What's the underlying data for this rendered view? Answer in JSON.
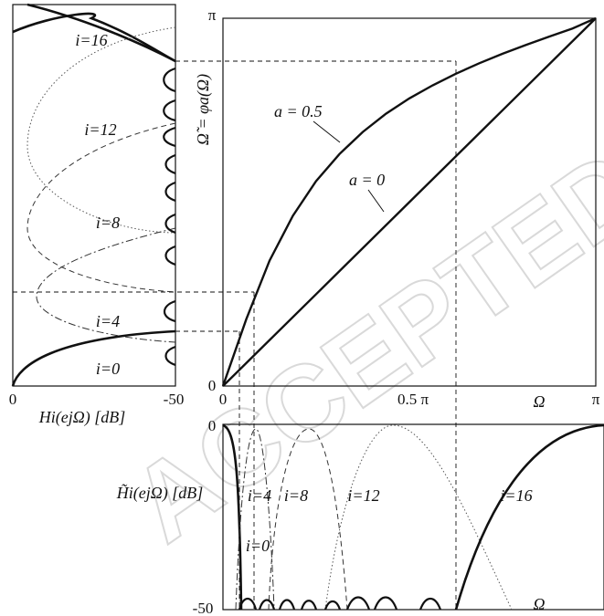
{
  "watermark": "ACCEPTED MANUSCRIPT",
  "chart_data": [
    {
      "type": "line",
      "panel": "frequency-warping",
      "xlabel": "Ω",
      "ylabel": "Ω̃ = φa(Ω)",
      "xlim": [
        0,
        3.1416
      ],
      "ylim": [
        0,
        3.1416
      ],
      "x_tick_labels": [
        "0",
        "0.5 π",
        "π"
      ],
      "y_tick_labels": [
        "0",
        "π"
      ],
      "series": [
        {
          "name": "a = 0",
          "x": [
            0,
            0.7854,
            1.5708,
            2.3562,
            3.1416
          ],
          "y": [
            0,
            0.7854,
            1.5708,
            2.3562,
            3.1416
          ]
        },
        {
          "name": "a = 0.5",
          "x": [
            0,
            0.196,
            0.393,
            0.589,
            0.785,
            0.982,
            1.178,
            1.374,
            1.571,
            1.767,
            1.963,
            2.16,
            2.356,
            2.553,
            2.749,
            2.945,
            3.1416
          ],
          "y": [
            0,
            0.571,
            1.071,
            1.454,
            1.75,
            1.982,
            2.17,
            2.326,
            2.457,
            2.569,
            2.668,
            2.757,
            2.838,
            2.914,
            2.985,
            3.054,
            3.1416
          ]
        }
      ],
      "annotations": [
        "a = 0.5",
        "a = 0"
      ]
    },
    {
      "type": "line",
      "panel": "left-filter-bank",
      "xlabel": "Hi(ejΩ) [dB]",
      "x_tick_labels": [
        "0",
        "-50"
      ],
      "xlim": [
        0,
        -50
      ],
      "series_labels": [
        "i=16",
        "i=12",
        "i=8",
        "i=4",
        "i=0"
      ]
    },
    {
      "type": "line",
      "panel": "bottom-warped-filter-bank",
      "ylabel": "H̃i(ejΩ) [dB]",
      "xlabel": "Ω",
      "y_tick_labels": [
        "0",
        "-50"
      ],
      "ylim": [
        -50,
        0
      ],
      "series_labels": [
        "i=4",
        "i=8",
        "i=12",
        "i=16",
        "i=0"
      ]
    }
  ]
}
